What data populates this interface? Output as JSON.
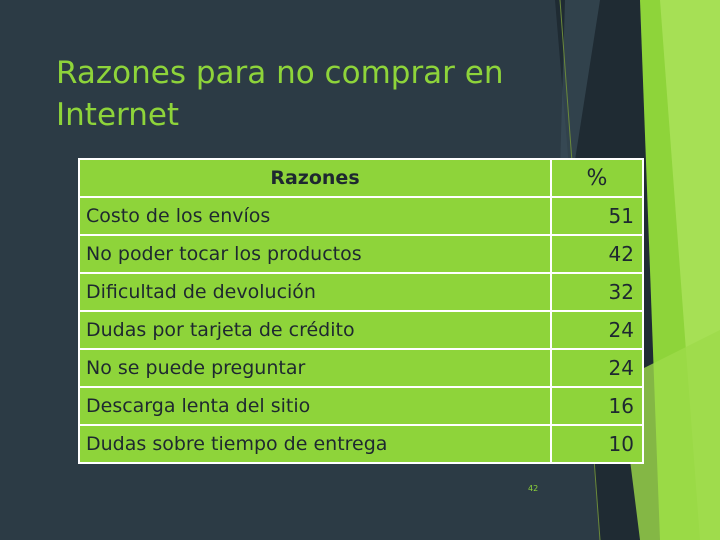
{
  "slide": {
    "title_line1": "Razones para no comprar en",
    "title_line2": "Internet",
    "page_number": "42"
  },
  "table": {
    "headers": [
      "Razones",
      "%"
    ],
    "rows": [
      {
        "reason": "Costo de los envíos",
        "value": "51"
      },
      {
        "reason": "No poder tocar los productos",
        "value": "42"
      },
      {
        "reason": "Dificultad de devolución",
        "value": "32"
      },
      {
        "reason": "Dudas por tarjeta de crédito",
        "value": "24"
      },
      {
        "reason": "No se puede preguntar",
        "value": "24"
      },
      {
        "reason": "Descarga lenta del sitio",
        "value": "16"
      },
      {
        "reason": "Dudas sobre tiempo de entrega",
        "value": "10"
      }
    ]
  },
  "colors": {
    "background": "#2c3b45",
    "accent": "#8ed43a",
    "table_text": "#1e2830"
  }
}
